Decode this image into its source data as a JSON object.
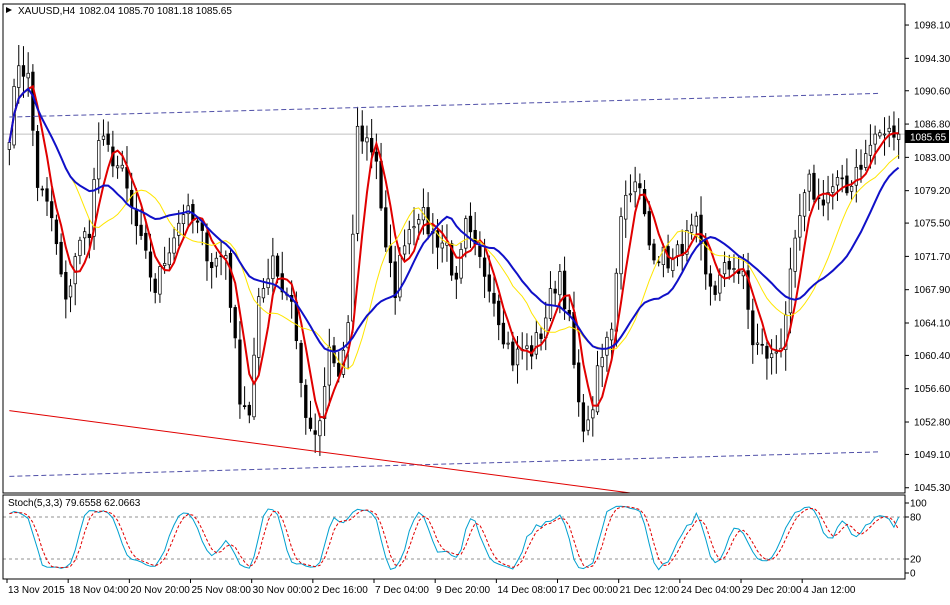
{
  "header": {
    "symbol": "XAUUSD,H4",
    "ohlc": "1082.04 1085.70 1081.18 1085.65"
  },
  "price_badge": "1085.65",
  "chart_data": [
    {
      "type": "candlestick",
      "title": "XAUUSD,H4",
      "bar_count": 190,
      "x_tick_labels": [
        "13 Nov 2015",
        "18 Nov 04:00",
        "20 Nov 20:00",
        "25 Nov 08:00",
        "30 Nov 00:00",
        "2 Dec 16:00",
        "7 Dec 04:00",
        "9 Dec 20:00",
        "14 Dec 08:00",
        "17 Dec 00:00",
        "21 Dec 12:00",
        "24 Dec 04:00",
        "29 Dec 20:00",
        "4 Jan 12:00"
      ],
      "x_tick_bars": [
        0,
        13,
        26,
        39,
        52,
        65,
        78,
        91,
        104,
        117,
        130,
        143,
        156,
        169
      ],
      "y_ticks": [
        1098.1,
        1094.3,
        1090.6,
        1086.8,
        1083.0,
        1079.2,
        1075.5,
        1071.7,
        1067.9,
        1064.1,
        1060.4,
        1056.6,
        1052.8,
        1049.1,
        1045.3
      ],
      "y_tick_labels": [
        "1098.10",
        "1094.30",
        "1090.60",
        "1086.80",
        "1083.00",
        "1079.20",
        "1075.50",
        "1071.70",
        "1067.90",
        "1064.10",
        "1060.40",
        "1056.60",
        "1052.80",
        "1049.10",
        "1045.30"
      ],
      "ylim": [
        1044.7,
        1100.5
      ],
      "last_price": 1085.65,
      "close_anchors": [
        [
          0,
          1086
        ],
        [
          2,
          1094
        ],
        [
          4,
          1092
        ],
        [
          6,
          1080
        ],
        [
          9,
          1076
        ],
        [
          12,
          1066
        ],
        [
          14,
          1072
        ],
        [
          17,
          1075
        ],
        [
          19,
          1085
        ],
        [
          22,
          1083
        ],
        [
          24,
          1081
        ],
        [
          26,
          1077
        ],
        [
          28,
          1073
        ],
        [
          31,
          1068
        ],
        [
          34,
          1073
        ],
        [
          37,
          1077
        ],
        [
          40,
          1075
        ],
        [
          43,
          1071
        ],
        [
          46,
          1072
        ],
        [
          49,
          1056
        ],
        [
          51,
          1054
        ],
        [
          53,
          1066
        ],
        [
          56,
          1072
        ],
        [
          58,
          1068
        ],
        [
          60,
          1067
        ],
        [
          62,
          1057
        ],
        [
          64,
          1051
        ],
        [
          66,
          1052
        ],
        [
          68,
          1061
        ],
        [
          70,
          1058
        ],
        [
          72,
          1063
        ],
        [
          74,
          1086
        ],
        [
          76,
          1085
        ],
        [
          78,
          1083
        ],
        [
          80,
          1072
        ],
        [
          82,
          1068
        ],
        [
          84,
          1074
        ],
        [
          87,
          1077
        ],
        [
          90,
          1074
        ],
        [
          93,
          1073
        ],
        [
          95,
          1068
        ],
        [
          97,
          1075
        ],
        [
          99,
          1072
        ],
        [
          102,
          1069
        ],
        [
          105,
          1063
        ],
        [
          107,
          1060
        ],
        [
          109,
          1061
        ],
        [
          111,
          1061
        ],
        [
          113,
          1063
        ],
        [
          115,
          1067
        ],
        [
          117,
          1070
        ],
        [
          119,
          1064
        ],
        [
          121,
          1054
        ],
        [
          123,
          1052
        ],
        [
          125,
          1058
        ],
        [
          128,
          1064
        ],
        [
          130,
          1077
        ],
        [
          132,
          1080
        ],
        [
          134,
          1079
        ],
        [
          136,
          1073
        ],
        [
          138,
          1072
        ],
        [
          141,
          1071
        ],
        [
          143,
          1073
        ],
        [
          146,
          1075
        ],
        [
          148,
          1069
        ],
        [
          150,
          1068
        ],
        [
          152,
          1070
        ],
        [
          154,
          1071
        ],
        [
          156,
          1069
        ],
        [
          158,
          1062
        ],
        [
          160,
          1061
        ],
        [
          162,
          1060
        ],
        [
          164,
          1062
        ],
        [
          166,
          1069
        ],
        [
          168,
          1076
        ],
        [
          170,
          1080
        ],
        [
          172,
          1078
        ],
        [
          174,
          1079
        ],
        [
          176,
          1080
        ],
        [
          178,
          1079
        ],
        [
          180,
          1082
        ],
        [
          182,
          1083
        ],
        [
          184,
          1085.65
        ]
      ],
      "indicators": [
        {
          "name": "MA red",
          "period": 5,
          "color": "#e00000"
        },
        {
          "name": "MA yellow",
          "period": 14,
          "color": "#ffe600"
        },
        {
          "name": "MA blue",
          "period": 21,
          "color": "#1010c8"
        }
      ],
      "trendlines": [
        {
          "color": "#5050a8",
          "style": "dashed",
          "points": [
            [
              0,
              1087.6
            ],
            [
              185,
              1090.3
            ]
          ]
        },
        {
          "color": "#5050a8",
          "style": "dashed",
          "points": [
            [
              0,
              1046.6
            ],
            [
              185,
              1049.4
            ]
          ]
        },
        {
          "color": "#e00000",
          "style": "solid",
          "points": [
            [
              0,
              1054.1
            ],
            [
              132,
              1044.7
            ]
          ]
        }
      ]
    },
    {
      "type": "line",
      "title": "Stoch(5,3,3) 79.6558 62.0663",
      "series_values": {
        "main": 79.6558,
        "signal": 62.0663
      },
      "series_colors": {
        "main": "#00a0d0",
        "signal": "#e00000"
      },
      "levels": [
        80,
        20
      ],
      "y_tick_labels": [
        "100",
        "80",
        "20",
        "0"
      ],
      "y_ticks": [
        100,
        80,
        20,
        0
      ],
      "ylim": [
        0,
        100
      ]
    }
  ]
}
